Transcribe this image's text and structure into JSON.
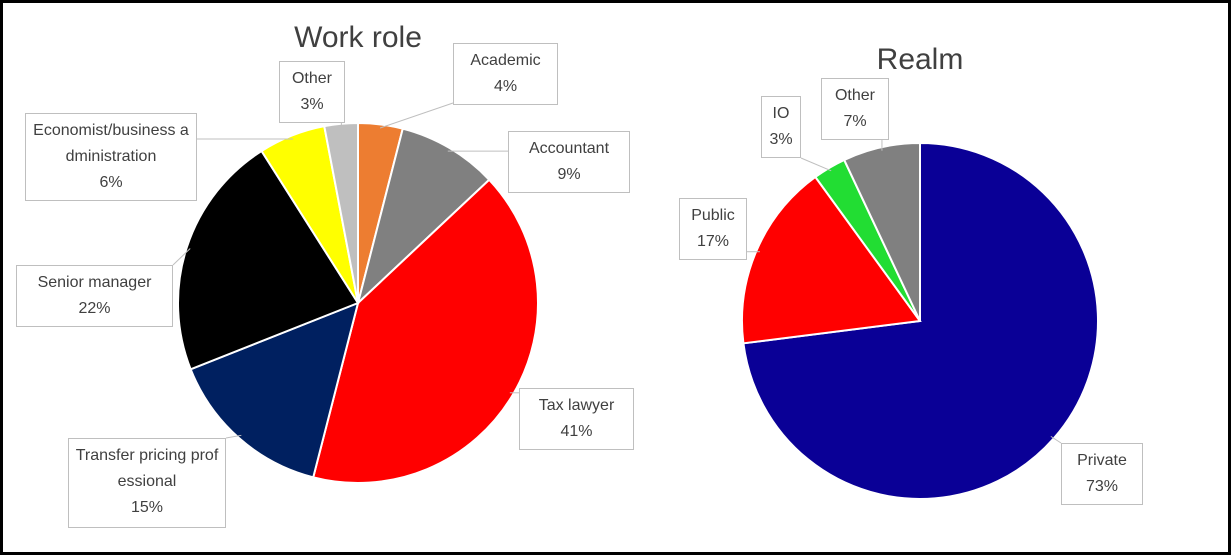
{
  "chart_data": [
    {
      "type": "pie",
      "title": "Work role",
      "categories": [
        "Academic",
        "Accountant",
        "Tax lawyer",
        "Transfer pricing professional",
        "Senior manager",
        "Economist/business administration",
        "Other"
      ],
      "values": [
        4,
        9,
        41,
        15,
        22,
        6,
        3
      ],
      "value_labels": [
        "4%",
        "9%",
        "41%",
        "15%",
        "22%",
        "6%",
        "3%"
      ],
      "colors": [
        "#ed7d31",
        "#808080",
        "#ff0000",
        "#002060",
        "#000000",
        "#ffff00",
        "#bfbfbf"
      ]
    },
    {
      "type": "pie",
      "title": "Realm",
      "categories": [
        "Private",
        "Public",
        "IO",
        "Other"
      ],
      "values": [
        73,
        17,
        3,
        7
      ],
      "value_labels": [
        "73%",
        "17%",
        "3%",
        "7%"
      ],
      "colors": [
        "#0a0096",
        "#ff0000",
        "#22dd33",
        "#808080"
      ]
    }
  ]
}
